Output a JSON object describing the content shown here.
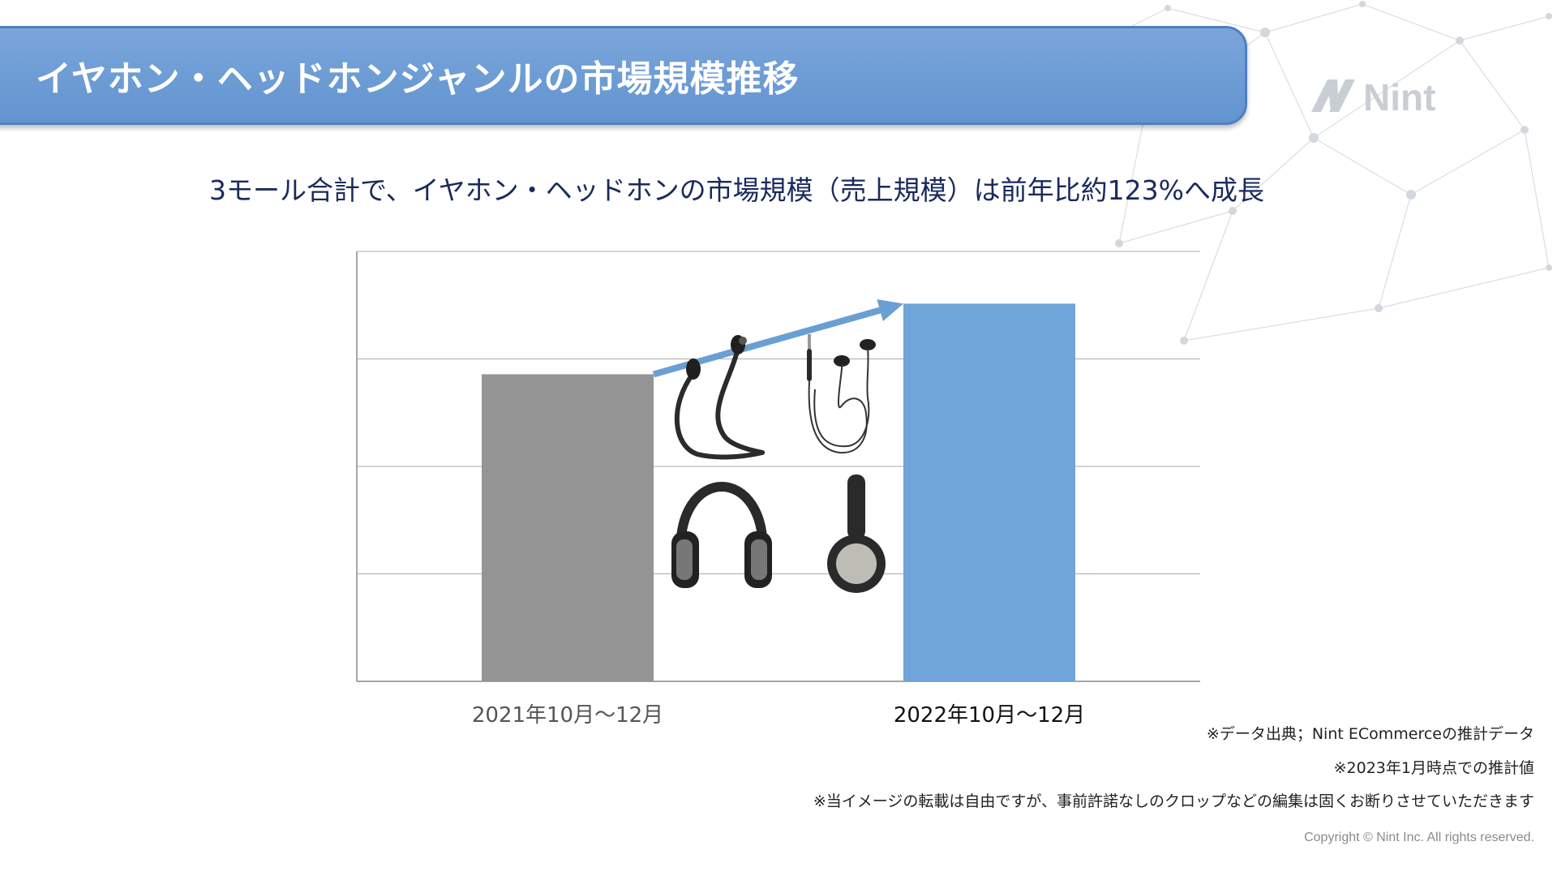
{
  "header": {
    "title": "イヤホン・ヘッドホンジャンルの市場規模推移"
  },
  "logo": {
    "text": "Nint",
    "icon": "nint-logo-icon"
  },
  "subtitle": "3モール合計で、イヤホン・ヘッドホンの市場規模（売上規模）は前年比約123%へ成長",
  "chart_data": {
    "type": "bar",
    "categories": [
      "2021年10月〜12月",
      "2022年10月〜12月"
    ],
    "values": [
      100,
      123
    ],
    "ylim": [
      0,
      140
    ],
    "gridlines": 4,
    "grid": true,
    "bar_colors": [
      "#949494",
      "#6fa5d8"
    ],
    "arrow_color": "#6a9fd3",
    "title": "",
    "xlabel": "",
    "ylabel": ""
  },
  "illustrations": [
    "earphones-neckband-icon",
    "earphones-wired-icon",
    "headphones-over-ear-icon",
    "headphones-side-icon"
  ],
  "notes": [
    "※データ出典；Nint ECommerceの推計データ",
    "※2023年1月時点での推計値",
    "※当イメージの転載は自由ですが、事前許諾なしのクロップなどの編集は固くお断りさせていただきます"
  ],
  "copyright": "Copyright © Nint Inc. All rights reserved."
}
